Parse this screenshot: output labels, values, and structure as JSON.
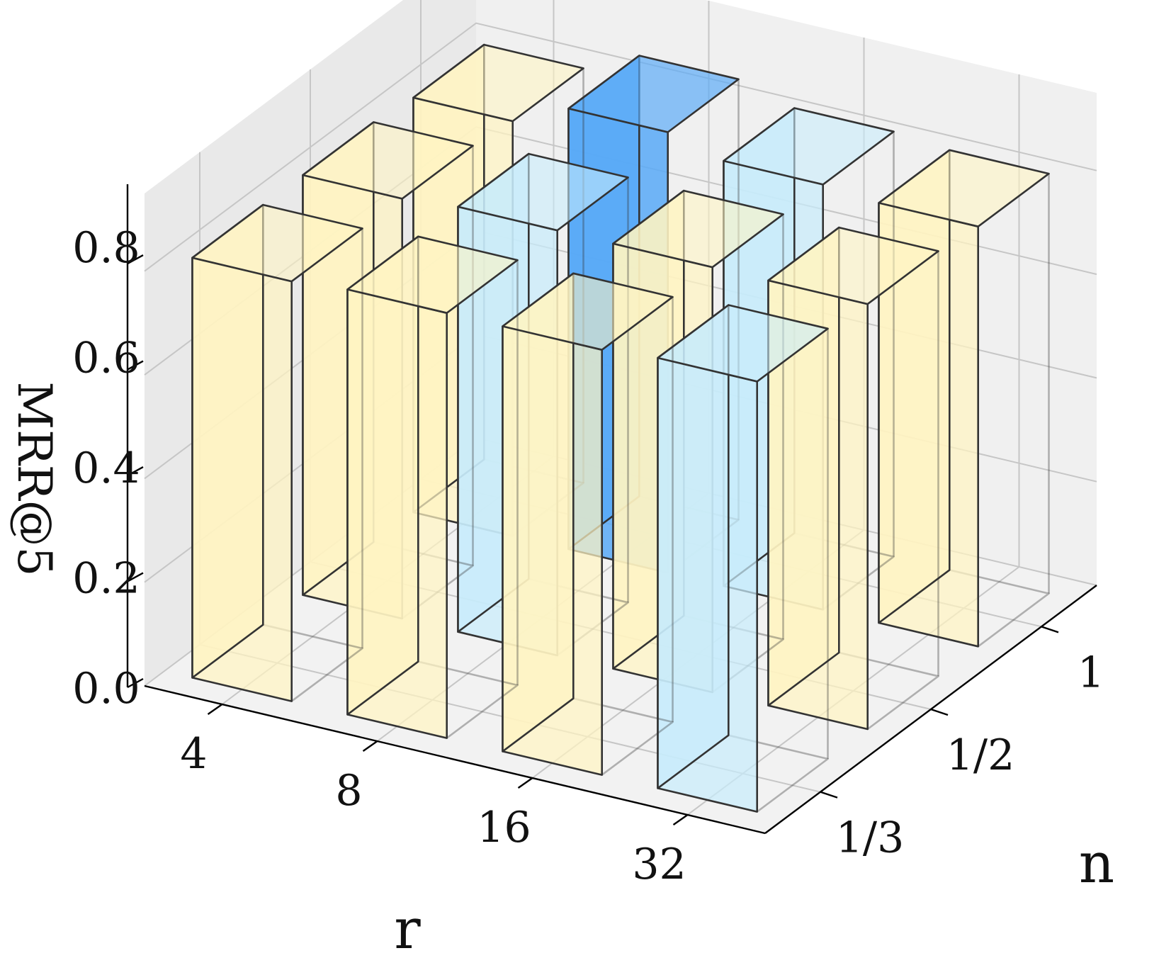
{
  "chart_data": {
    "type": "bar3d",
    "xlabel": "r",
    "ylabel": "n",
    "zlabel": "MRR@5",
    "x_categories": [
      "4",
      "8",
      "16",
      "32"
    ],
    "y_categories": [
      "1/3",
      "1/2",
      "1"
    ],
    "z_ticks": [
      "0.0",
      "0.2",
      "0.4",
      "0.6",
      "0.8"
    ],
    "zlim": [
      0,
      0.95
    ],
    "grid": true,
    "colors": {
      "default": "#fff4c2",
      "highlight": "#c8ecfb",
      "best": "#58a9f7",
      "edge": "#333333"
    },
    "bars": [
      {
        "r": "4",
        "n": "1/3",
        "value": 0.81,
        "color": "default"
      },
      {
        "r": "4",
        "n": "1/2",
        "value": 0.81,
        "color": "default"
      },
      {
        "r": "4",
        "n": "1",
        "value": 0.8,
        "color": "default"
      },
      {
        "r": "8",
        "n": "1/3",
        "value": 0.82,
        "color": "default"
      },
      {
        "r": "8",
        "n": "1/2",
        "value": 0.82,
        "color": "highlight"
      },
      {
        "r": "8",
        "n": "1",
        "value": 0.85,
        "color": "best"
      },
      {
        "r": "16",
        "n": "1/3",
        "value": 0.82,
        "color": "default"
      },
      {
        "r": "16",
        "n": "1/2",
        "value": 0.82,
        "color": "default"
      },
      {
        "r": "16",
        "n": "1",
        "value": 0.82,
        "color": "highlight"
      },
      {
        "r": "32",
        "n": "1/3",
        "value": 0.83,
        "color": "highlight"
      },
      {
        "r": "32",
        "n": "1/2",
        "value": 0.82,
        "color": "default"
      },
      {
        "r": "32",
        "n": "1",
        "value": 0.81,
        "color": "default"
      }
    ]
  }
}
